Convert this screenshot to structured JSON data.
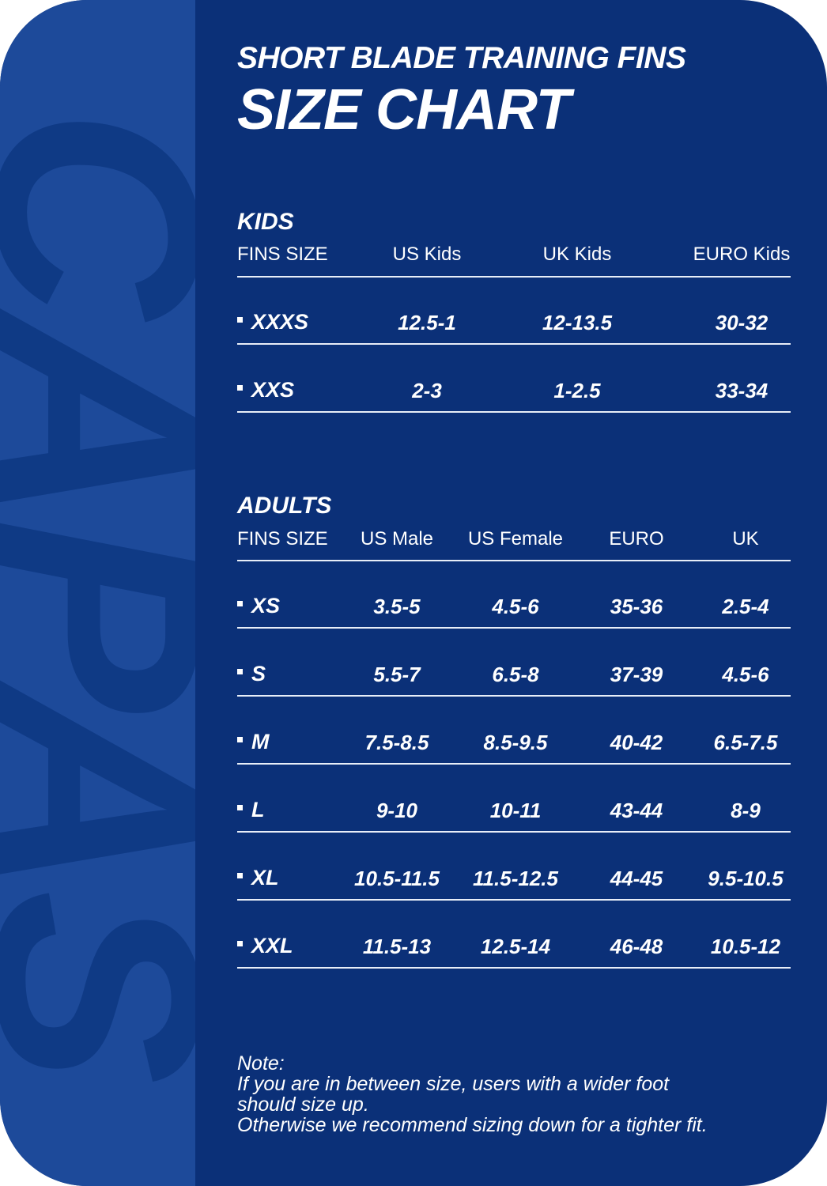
{
  "colors": {
    "background": "#0b3078",
    "side_strip": "#1d4a9a",
    "watermark": "#0f3a85",
    "text": "#ffffff"
  },
  "watermark": "CAPAS",
  "title": {
    "line1": "SHORT BLADE TRAINING FINS",
    "line2": "SIZE CHART"
  },
  "kids": {
    "heading": "KIDS",
    "columns": [
      "FINS SIZE",
      "US Kids",
      "UK Kids",
      "EURO Kids"
    ],
    "rows": [
      [
        "XXXS",
        "12.5-1",
        "12-13.5",
        "30-32"
      ],
      [
        "XXS",
        "2-3",
        "1-2.5",
        "33-34"
      ]
    ]
  },
  "adults": {
    "heading": "ADULTS",
    "columns": [
      "FINS SIZE",
      "US Male",
      "US Female",
      "EURO",
      "UK"
    ],
    "rows": [
      [
        "XS",
        "3.5-5",
        "4.5-6",
        "35-36",
        "2.5-4"
      ],
      [
        "S",
        "5.5-7",
        "6.5-8",
        "37-39",
        "4.5-6"
      ],
      [
        "M",
        "7.5-8.5",
        "8.5-9.5",
        "40-42",
        "6.5-7.5"
      ],
      [
        "L",
        "9-10",
        "10-11",
        "43-44",
        "8-9"
      ],
      [
        "XL",
        "10.5-11.5",
        "11.5-12.5",
        "44-45",
        "9.5-10.5"
      ],
      [
        "XXL",
        "11.5-13",
        "12.5-14",
        "46-48",
        "10.5-12"
      ]
    ]
  },
  "note": {
    "label": "Note:",
    "lines": [
      "If you are in between size, users with a wider foot",
      "should size up.",
      "Otherwise we recommend sizing down for a tighter fit."
    ]
  }
}
